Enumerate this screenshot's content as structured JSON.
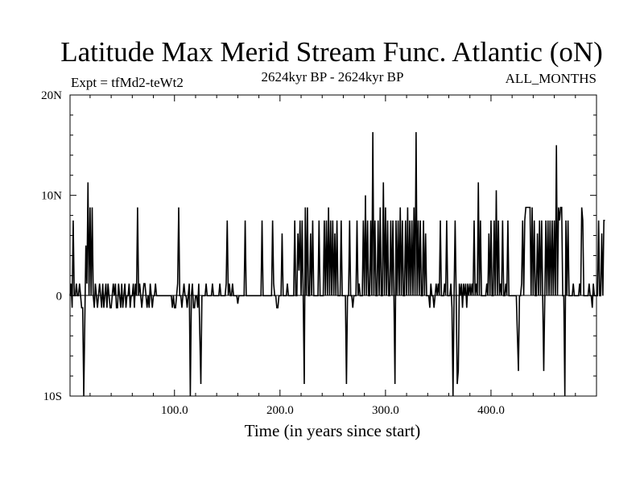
{
  "chart_data": {
    "type": "line",
    "title": "Latitude Max Merid Stream Func. Atlantic (oN)",
    "expt_label": "Expt = tfMd2-teWt2",
    "period_label": "2624kyr BP - 2624kyr BP",
    "months_label": "ALL_MONTHS",
    "xlabel": "Time (in years since start)",
    "ylabel": "",
    "xlim": [
      1,
      500
    ],
    "ylim": [
      -10,
      20
    ],
    "x_ticks": [
      {
        "value": 100,
        "label": "100.0"
      },
      {
        "value": 200,
        "label": "200.0"
      },
      {
        "value": 300,
        "label": "300.0"
      },
      {
        "value": 400,
        "label": "400.0"
      }
    ],
    "y_ticks": [
      {
        "value": -10,
        "label": "10S"
      },
      {
        "value": 0,
        "label": "0"
      },
      {
        "value": 10,
        "label": "10N"
      },
      {
        "value": 20,
        "label": "20N"
      }
    ],
    "series": [
      {
        "name": "latitude_max",
        "x_start": 1,
        "x_step": 1,
        "values": [
          0,
          1.2,
          -1.2,
          7.5,
          0,
          0,
          1.2,
          0,
          0,
          1.2,
          0,
          -1.2,
          -1.2,
          -10,
          -2.5,
          5,
          1.2,
          11.3,
          0,
          8.8,
          0,
          8.8,
          0,
          -1.2,
          1.2,
          0,
          -1.2,
          0,
          1.2,
          0,
          -1.2,
          1.2,
          -1.2,
          0,
          1.2,
          -1.2,
          1.2,
          0,
          -1.2,
          -1.2,
          0,
          1.2,
          0,
          1.2,
          -1.2,
          -1.2,
          1.2,
          0,
          -1.2,
          1.2,
          -1.2,
          0,
          1.2,
          -1.2,
          0,
          0,
          1.2,
          -1.2,
          0,
          0,
          1.2,
          -1.2,
          1.2,
          0,
          8.8,
          0,
          1.2,
          0,
          -1.2,
          0,
          1.2,
          1.2,
          0,
          -1.2,
          0,
          -1.2,
          1.2,
          0,
          -1.2,
          0,
          0,
          1.2,
          0,
          0,
          0,
          0,
          0,
          0,
          0,
          0,
          0,
          0,
          0,
          0,
          0,
          0,
          0,
          -1.2,
          0,
          -1.2,
          -1.2,
          0,
          1.2,
          8.8,
          0,
          0,
          -1.2,
          0,
          1.2,
          0,
          0,
          -1.2,
          0,
          1.2,
          -10,
          0,
          1.2,
          -1.2,
          -1.2,
          0,
          0,
          -1.2,
          1.2,
          -3.8,
          -8.8,
          0,
          0,
          0,
          0,
          1.2,
          0,
          0,
          0,
          0,
          0,
          1.2,
          0,
          0,
          0,
          0,
          0,
          0,
          1.2,
          0,
          0,
          0,
          0,
          0,
          1.2,
          7.5,
          0,
          1.2,
          0,
          0,
          1.2,
          0,
          0,
          0,
          0,
          -0.8,
          0,
          0,
          0,
          0,
          0,
          0,
          7.5,
          0,
          0,
          0,
          0,
          0,
          0,
          0,
          0,
          0,
          0,
          0,
          0,
          0,
          0,
          0,
          7.5,
          0,
          0,
          0,
          0,
          0,
          0,
          0,
          0,
          0,
          7.5,
          1.2,
          0,
          0,
          -1.2,
          -1.2,
          0,
          0,
          0,
          6.2,
          0,
          0,
          0,
          0,
          1.2,
          0,
          0,
          0,
          0,
          0,
          0,
          7.5,
          0,
          0,
          6.2,
          2.5,
          7.5,
          0,
          7.5,
          0,
          -8.8,
          8.8,
          0,
          8.8,
          0,
          0,
          6.2,
          0,
          7.5,
          0,
          0,
          0,
          0,
          0,
          7.5,
          0,
          0,
          0,
          0,
          7.5,
          0,
          7.5,
          0,
          8.8,
          0,
          7.5,
          0,
          7.5,
          0,
          6.2,
          0,
          7.5,
          0,
          0,
          0,
          7.5,
          0,
          0,
          0,
          0,
          -8.8,
          0,
          0,
          7.5,
          0,
          0,
          -1.2,
          0,
          0,
          0,
          7.5,
          0,
          1.2,
          0,
          0,
          0,
          7.5,
          0,
          10,
          0,
          7.5,
          0,
          0,
          7.5,
          0,
          16.3,
          0,
          7.5,
          0,
          0,
          7.5,
          0,
          8.8,
          0,
          0,
          11.3,
          0,
          8.8,
          0,
          7.5,
          0,
          0,
          7.5,
          0,
          7.5,
          0,
          -8.8,
          7.5,
          0,
          7.5,
          0,
          8.8,
          0,
          7.5,
          0,
          0,
          7.5,
          0,
          8.8,
          0,
          7.5,
          0,
          7.5,
          0,
          8.8,
          0,
          16.3,
          0,
          7.5,
          0,
          7.5,
          0,
          0,
          7.5,
          0,
          6.2,
          0,
          0,
          0,
          -1.2,
          1.2,
          0,
          0,
          -1.2,
          0,
          1.2,
          0,
          1.2,
          0,
          7.5,
          0,
          0,
          0,
          1.2,
          0,
          7.5,
          0,
          0,
          0,
          1.2,
          -1.2,
          -11.3,
          0,
          7.5,
          0,
          -8.8,
          -7.5,
          1.2,
          0,
          1.2,
          -1.2,
          1.2,
          0,
          1.2,
          -1.2,
          1.2,
          0,
          1.2,
          0,
          1.2,
          0,
          7.5,
          0,
          1.2,
          0,
          11.3,
          0,
          7.5,
          0,
          0,
          0,
          0,
          0,
          1.2,
          0,
          6.2,
          0,
          7.5,
          0,
          0,
          7.5,
          0,
          10.5,
          0,
          7.5,
          0,
          1.2,
          0,
          7.5,
          0,
          0,
          1.2,
          0,
          7.5,
          0,
          0,
          0,
          0,
          0,
          0,
          0,
          0,
          -3.8,
          -7.5,
          0,
          0,
          1.2,
          7.5,
          0,
          7.5,
          8.8,
          8.8,
          8.8,
          8.8,
          8.8,
          0,
          8.8,
          0,
          7.5,
          0,
          0,
          6.2,
          0,
          7.5,
          0,
          7.5,
          0,
          -7.5,
          0,
          7.5,
          0,
          7.5,
          0,
          7.5,
          0,
          7.5,
          0,
          7.5,
          0,
          15,
          0,
          8.8,
          7.5,
          8.8,
          8.8,
          0,
          0,
          -10,
          7.5,
          0,
          7.5,
          0,
          0,
          0,
          0,
          1.2,
          0,
          0,
          0,
          0,
          0,
          1.2,
          0,
          8.8,
          7.5,
          0,
          0,
          0,
          0,
          0,
          1.2,
          0,
          0,
          -1.2,
          1.2,
          0,
          0,
          0,
          0,
          7.5,
          0,
          0,
          6.2,
          0,
          7.5,
          7.5
        ]
      }
    ]
  }
}
